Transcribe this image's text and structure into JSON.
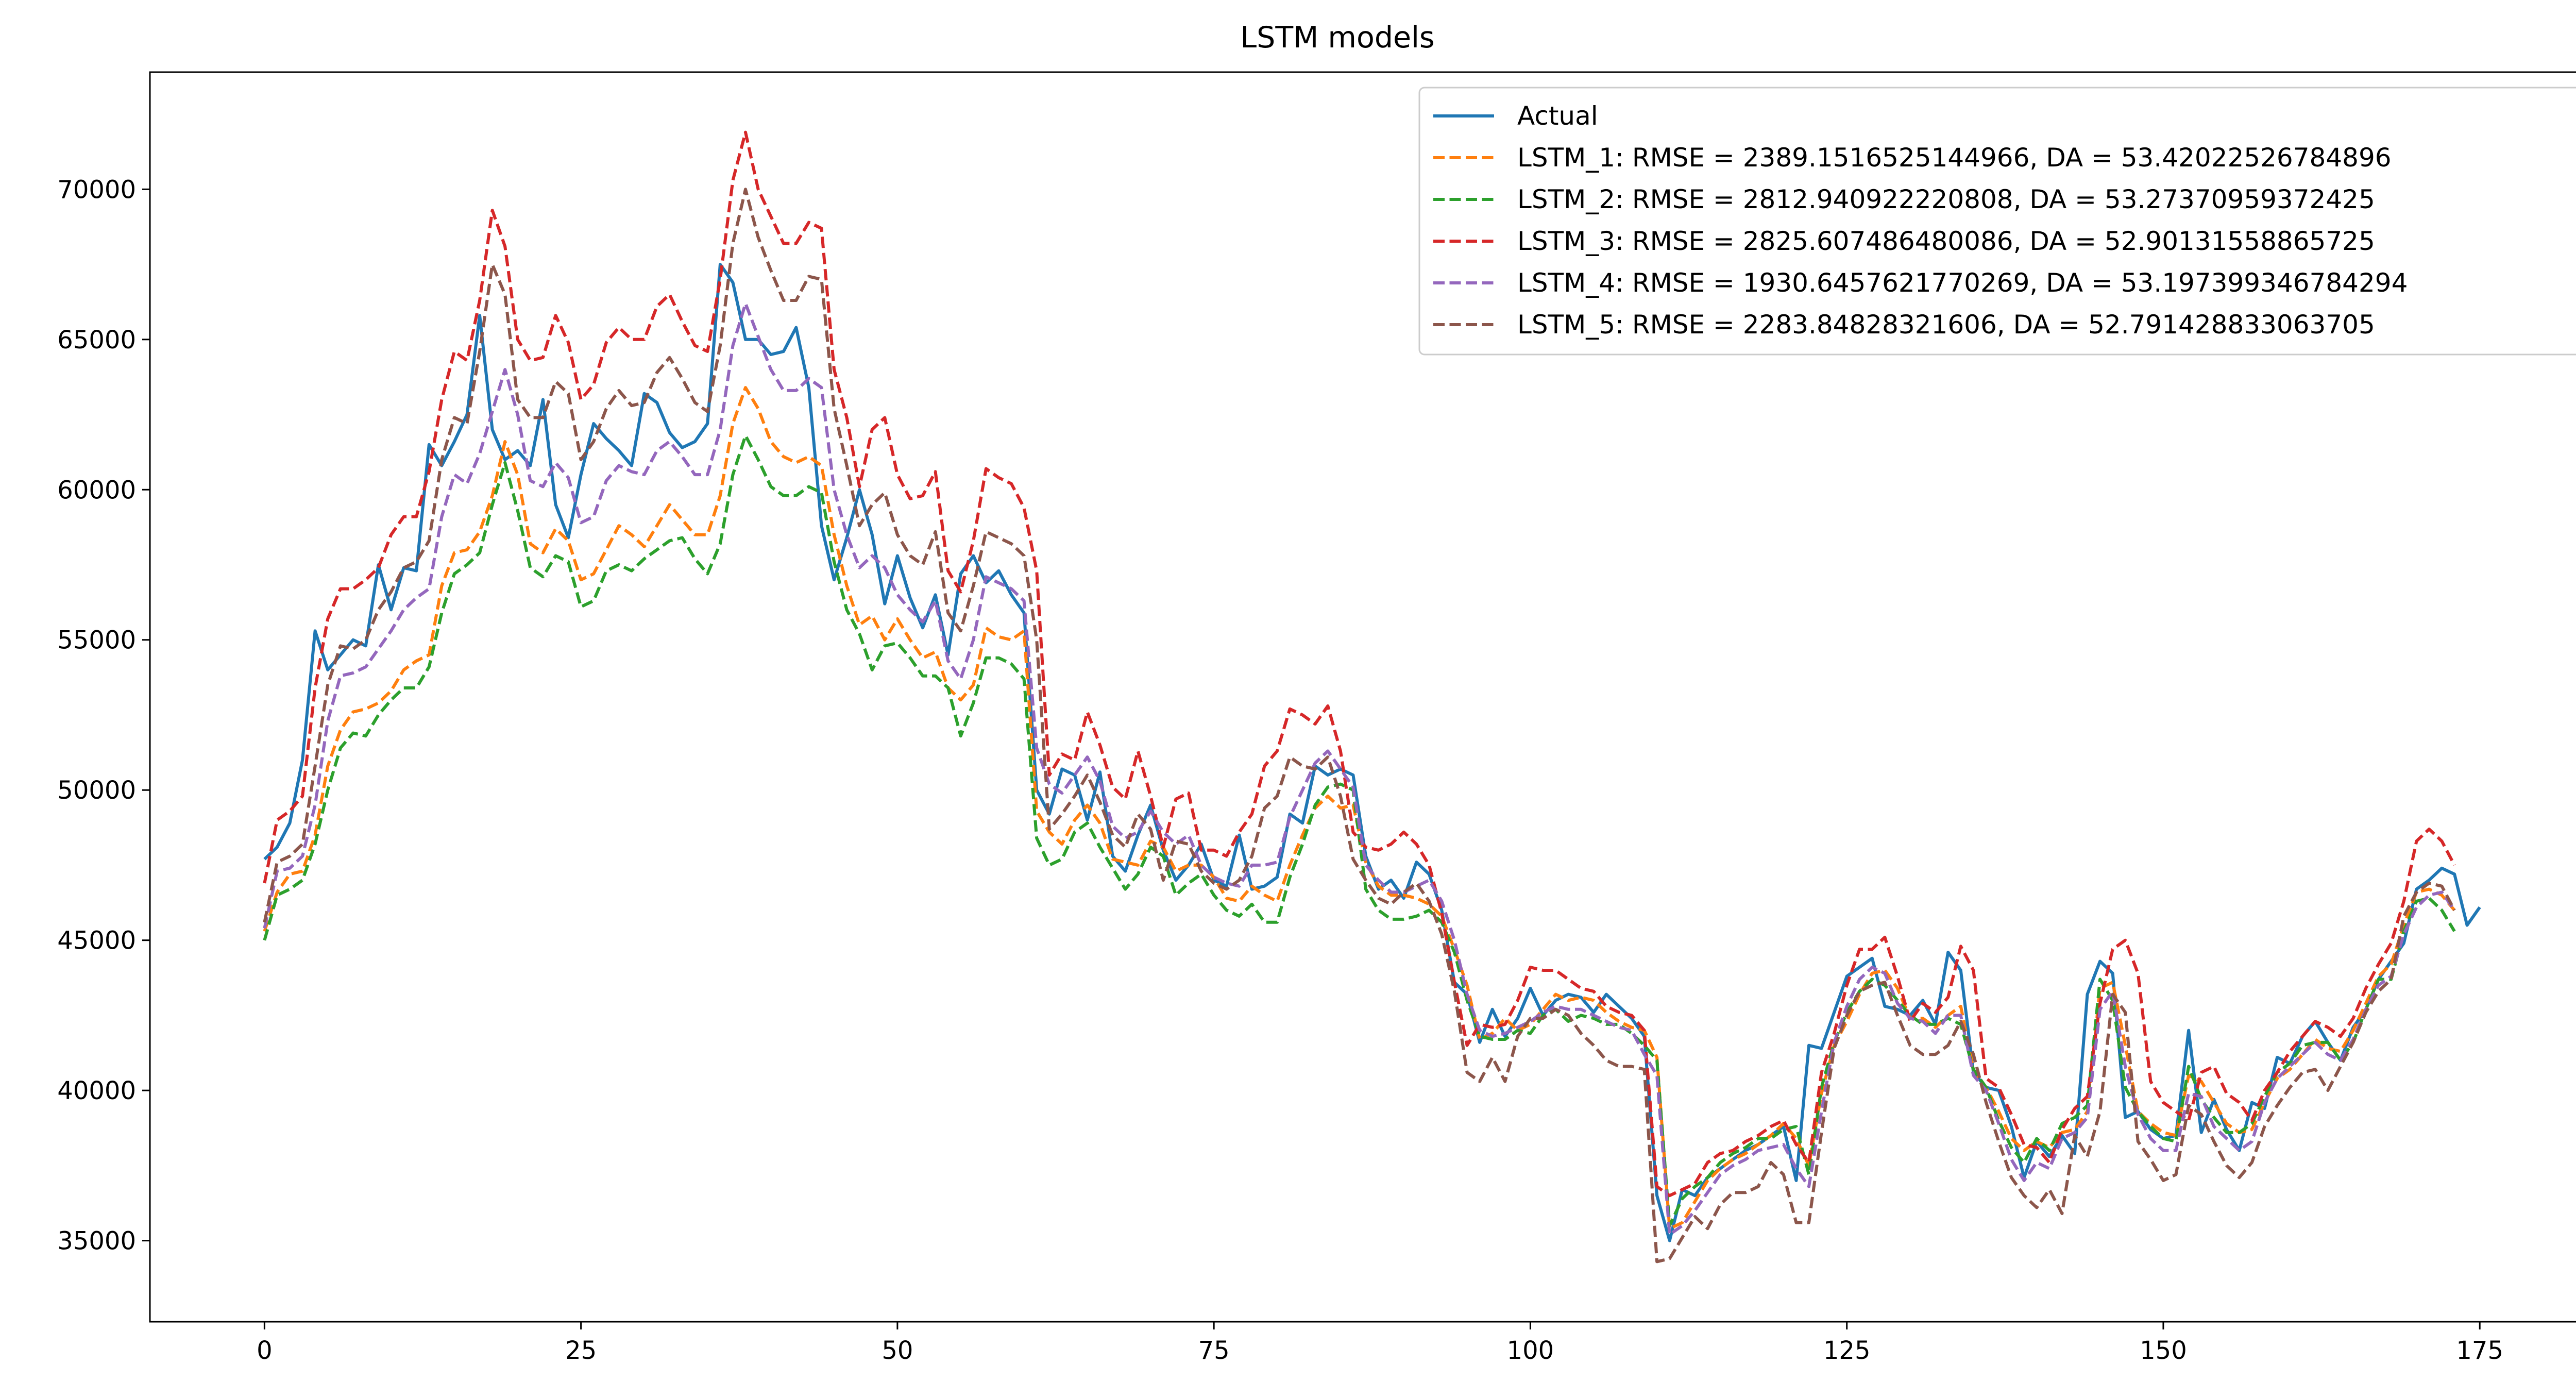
{
  "chart_data": {
    "type": "line",
    "title": "LSTM models",
    "xlabel": "",
    "ylabel": "",
    "xlim": [
      -9.05,
      190.05
    ],
    "ylim": [
      32300,
      73900
    ],
    "xticks": [
      0,
      25,
      50,
      75,
      100,
      125,
      150,
      175
    ],
    "xtick_labels": [
      "0",
      "25",
      "50",
      "75",
      "100",
      "125",
      "150",
      "175"
    ],
    "yticks": [
      35000,
      40000,
      45000,
      50000,
      55000,
      60000,
      65000,
      70000
    ],
    "ytick_labels": [
      "35000",
      "40000",
      "45000",
      "50000",
      "55000",
      "60000",
      "65000",
      "70000"
    ],
    "grid": false,
    "legend_position": "upper-right",
    "series": [
      {
        "name": "Actual",
        "color": "#1f77b4",
        "style": "solid",
        "values": [
          47700,
          48100,
          48900,
          51000,
          55300,
          54000,
          54500,
          55000,
          54800,
          57500,
          56000,
          57400,
          57300,
          61500,
          60800,
          61600,
          62500,
          65800,
          62000,
          61000,
          61300,
          60800,
          63000,
          59500,
          58400,
          60500,
          62200,
          61700,
          61300,
          60800,
          63200,
          62900,
          61900,
          61400,
          61600,
          62200,
          67500,
          66900,
          65000,
          65000,
          64500,
          64600,
          65400,
          63400,
          58800,
          57000,
          58400,
          60000,
          58500,
          56200,
          57800,
          56400,
          55400,
          56500,
          54500,
          57200,
          57800,
          56900,
          57300,
          56500,
          55900,
          50000,
          49200,
          50700,
          50500,
          49000,
          50600,
          47800,
          47300,
          48500,
          49500,
          48000,
          47000,
          47500,
          48200,
          47000,
          46800,
          48500,
          46700,
          46800,
          47100,
          49200,
          48900,
          50800,
          50500,
          50700,
          50500,
          47800,
          46700,
          47000,
          46400,
          47600,
          47200,
          46000,
          43600,
          43200,
          41600,
          42700,
          41800,
          42400,
          43400,
          42500,
          43000,
          43200,
          43100,
          42600,
          43200,
          42800,
          42400,
          41800,
          36500,
          35000,
          36700,
          36500,
          37100,
          37400,
          37700,
          38000,
          38200,
          38500,
          38800,
          37000,
          41500,
          41400,
          42600,
          43800,
          44100,
          44400,
          42800,
          42700,
          42500,
          43000,
          42200,
          44600,
          44000,
          40600,
          40100,
          40000,
          38800,
          37100,
          38300,
          37800,
          38500,
          37900,
          43200,
          44300,
          43900,
          39100,
          39300,
          38700,
          38400,
          38500,
          42000,
          38600,
          39700,
          38700,
          38000,
          39600,
          39400,
          41100,
          40900,
          41800,
          42300,
          41600,
          41000,
          42100,
          42700,
          43700,
          44300,
          44900,
          46700,
          47000,
          47400,
          47200,
          45500,
          46100
        ]
      },
      {
        "name": "LSTM_1: RMSE = 2389.1516525144966, DA = 53.42022526784896",
        "color": "#ff7f0e",
        "style": "dashed",
        "values": [
          45300,
          46600,
          47200,
          47300,
          48500,
          50800,
          52000,
          52600,
          52700,
          52900,
          53300,
          54000,
          54300,
          54500,
          56800,
          57900,
          58000,
          58600,
          59800,
          61600,
          60500,
          58200,
          57900,
          58700,
          58300,
          57000,
          57200,
          58000,
          58800,
          58500,
          58100,
          58800,
          59500,
          59000,
          58500,
          58500,
          59800,
          62200,
          63400,
          62700,
          61600,
          61100,
          60900,
          61100,
          60800,
          58500,
          56800,
          55500,
          55800,
          55000,
          55700,
          55000,
          54400,
          54600,
          53400,
          53000,
          53500,
          55400,
          55100,
          55000,
          55300,
          49300,
          48600,
          48200,
          49000,
          49500,
          48900,
          47700,
          47600,
          47500,
          48300,
          48100,
          47300,
          47500,
          47500,
          47100,
          46400,
          46300,
          46800,
          46500,
          46300,
          47500,
          48500,
          49400,
          49800,
          49400,
          49500,
          47600,
          46800,
          46500,
          46500,
          46400,
          46200,
          45800,
          44700,
          43500,
          41700,
          41900,
          42400,
          42000,
          42200,
          42700,
          43200,
          43000,
          43100,
          43000,
          42600,
          42300,
          42100,
          42000,
          41100,
          35400,
          35600,
          36300,
          37000,
          37400,
          37700,
          37900,
          38200,
          38500,
          38900,
          38400,
          37500,
          39900,
          41500,
          42300,
          43200,
          43900,
          44000,
          43400,
          42400,
          42400,
          42100,
          42500,
          42800,
          40700,
          40100,
          39300,
          38400,
          38000,
          38300,
          38100,
          38600,
          38700,
          39300,
          43400,
          43600,
          41500,
          39300,
          38900,
          38600,
          38500,
          40500,
          40300,
          39600,
          38900,
          38600,
          38700,
          39600,
          40400,
          40700,
          41200,
          41700,
          41400,
          41300,
          42000,
          42900,
          43800,
          44200,
          45500,
          46600,
          46700,
          46500,
          46000
        ]
      },
      {
        "name": "LSTM_2: RMSE = 2812.940922220808, DA = 53.27370959372425",
        "color": "#2ca02c",
        "style": "dashed",
        "values": [
          45000,
          46500,
          46700,
          47000,
          48200,
          50000,
          51400,
          51900,
          51800,
          52500,
          53000,
          53400,
          53400,
          54100,
          55900,
          57200,
          57500,
          57900,
          59500,
          60900,
          59300,
          57400,
          57100,
          57800,
          57600,
          56100,
          56300,
          57300,
          57500,
          57300,
          57700,
          58000,
          58300,
          58400,
          57700,
          57200,
          58200,
          60500,
          61800,
          61000,
          60100,
          59800,
          59800,
          60100,
          59900,
          57600,
          56000,
          55200,
          54000,
          54800,
          54900,
          54400,
          53800,
          53800,
          53400,
          51800,
          52900,
          54400,
          54400,
          54200,
          53700,
          48400,
          47500,
          47700,
          48600,
          48900,
          48100,
          47400,
          46700,
          47200,
          48100,
          47800,
          46500,
          46900,
          47200,
          46500,
          46000,
          45800,
          46200,
          45600,
          45600,
          47100,
          48200,
          49500,
          50100,
          50200,
          50000,
          46700,
          46000,
          45700,
          45700,
          45800,
          46000,
          45600,
          44600,
          43000,
          41800,
          41700,
          41700,
          42000,
          41900,
          42500,
          42700,
          42300,
          42500,
          42400,
          42200,
          42200,
          41900,
          41500,
          41000,
          35500,
          36400,
          36800,
          37100,
          37600,
          37900,
          38100,
          38400,
          38400,
          38700,
          38800,
          37200,
          40100,
          41600,
          42600,
          43300,
          43700,
          43500,
          43000,
          42500,
          42200,
          42200,
          42400,
          42200,
          40700,
          40100,
          39000,
          38100,
          37600,
          38400,
          38000,
          38900,
          39100,
          39500,
          43700,
          43000,
          40100,
          39300,
          38800,
          38400,
          38300,
          40800,
          39700,
          39100,
          38600,
          38600,
          38900,
          39800,
          40600,
          40900,
          41500,
          41600,
          41600,
          41000,
          41600,
          42700,
          43700,
          43700,
          45300,
          46300,
          46400,
          46000,
          45300
        ]
      },
      {
        "name": "LSTM_3: RMSE = 2825.607486480086, DA = 52.90131558865725",
        "color": "#d62728",
        "style": "dashed",
        "values": [
          46900,
          49000,
          49300,
          49800,
          53400,
          55700,
          56700,
          56700,
          57000,
          57400,
          58500,
          59100,
          59100,
          60600,
          63000,
          64600,
          64300,
          66300,
          69300,
          68100,
          65000,
          64300,
          64400,
          65800,
          64900,
          63000,
          63500,
          64900,
          65400,
          65000,
          65000,
          66100,
          66500,
          65600,
          64800,
          64600,
          67000,
          70300,
          71900,
          70000,
          69100,
          68200,
          68200,
          68900,
          68700,
          64000,
          62400,
          60100,
          62000,
          62400,
          60500,
          59700,
          59800,
          60600,
          57300,
          56600,
          58300,
          60700,
          60400,
          60200,
          59400,
          57300,
          50500,
          51200,
          51000,
          52600,
          51500,
          50100,
          49700,
          51300,
          49800,
          48100,
          49700,
          49900,
          48000,
          48000,
          47800,
          48600,
          49200,
          50800,
          51300,
          52700,
          52500,
          52200,
          52800,
          51300,
          48600,
          48100,
          48000,
          48200,
          48600,
          48200,
          47500,
          45900,
          43600,
          41500,
          42200,
          42100,
          42200,
          43000,
          44100,
          44000,
          44000,
          43700,
          43400,
          43300,
          42800,
          42600,
          42500,
          42000,
          36800,
          36500,
          36700,
          36900,
          37600,
          37900,
          38000,
          38300,
          38500,
          38800,
          39000,
          38200,
          37600,
          40600,
          41900,
          43500,
          44700,
          44700,
          45100,
          43800,
          42300,
          42900,
          42600,
          43100,
          44800,
          44000,
          40400,
          40100,
          39200,
          38200,
          38100,
          37600,
          38700,
          39400,
          39800,
          42900,
          44700,
          45000,
          43900,
          40300,
          39600,
          39300,
          39000,
          40600,
          40800,
          39900,
          39600,
          39000,
          40000,
          40600,
          41300,
          41800,
          42300,
          42100,
          41800,
          42400,
          43400,
          44200,
          44900,
          46300,
          48300,
          48700,
          48300,
          47500
        ]
      },
      {
        "name": "LSTM_4: RMSE = 1930.6457621770269, DA = 53.197399346784294",
        "color": "#9467bd",
        "style": "dashed",
        "values": [
          45400,
          47300,
          47400,
          47800,
          49500,
          52300,
          53800,
          53900,
          54100,
          54700,
          55300,
          56000,
          56400,
          56700,
          59100,
          60500,
          60200,
          61200,
          62600,
          64000,
          62500,
          60300,
          60100,
          60900,
          60400,
          58900,
          59100,
          60300,
          60800,
          60600,
          60500,
          61300,
          61600,
          61100,
          60500,
          60500,
          62000,
          64800,
          66200,
          65100,
          64000,
          63300,
          63300,
          63700,
          63400,
          60000,
          58500,
          57400,
          57800,
          57400,
          56500,
          56000,
          55600,
          56300,
          54300,
          53700,
          55000,
          57100,
          56900,
          56700,
          56300,
          51400,
          50200,
          49900,
          50500,
          51100,
          50300,
          48800,
          48400,
          48600,
          49300,
          48600,
          48200,
          48500,
          47500,
          47100,
          46900,
          46800,
          47500,
          47500,
          47600,
          49100,
          50000,
          50900,
          51300,
          50700,
          50100,
          47500,
          47000,
          46600,
          46600,
          46800,
          47000,
          46300,
          45000,
          43200,
          42000,
          41800,
          41900,
          42100,
          42300,
          42600,
          42800,
          42700,
          42700,
          42500,
          42300,
          42100,
          42000,
          41200,
          40500,
          35200,
          35500,
          36000,
          36600,
          37200,
          37500,
          37700,
          38000,
          38100,
          38200,
          37400,
          36800,
          39300,
          41600,
          42800,
          43700,
          44100,
          43900,
          42900,
          42400,
          42300,
          41900,
          42500,
          42500,
          40500,
          40000,
          38900,
          37700,
          37000,
          37600,
          37400,
          38400,
          38600,
          39100,
          42700,
          43300,
          40800,
          39200,
          38400,
          38000,
          38000,
          39900,
          39800,
          38800,
          38400,
          38000,
          38300,
          39600,
          40400,
          40800,
          41200,
          41600,
          41200,
          41000,
          41700,
          42700,
          43500,
          43800,
          45200,
          46100,
          46500,
          46600,
          46000
        ]
      },
      {
        "name": "LSTM_5: RMSE = 2283.84828321606, DA = 52.791428833063705",
        "color": "#8c564b",
        "style": "dashed",
        "values": [
          45600,
          47600,
          47800,
          48200,
          50800,
          53500,
          54800,
          54700,
          55000,
          56000,
          56600,
          57400,
          57600,
          58300,
          61000,
          62400,
          62200,
          64600,
          67500,
          66500,
          63000,
          62400,
          62400,
          63600,
          63200,
          61000,
          61600,
          62700,
          63300,
          62800,
          62900,
          63900,
          64400,
          63700,
          62900,
          62600,
          64800,
          68200,
          70000,
          68400,
          67300,
          66300,
          66300,
          67100,
          67000,
          62700,
          60800,
          58800,
          59500,
          59900,
          58500,
          57800,
          57500,
          58600,
          55900,
          55300,
          56800,
          58600,
          58400,
          58200,
          57800,
          55000,
          48700,
          49200,
          49800,
          50500,
          49600,
          48500,
          48100,
          49200,
          48700,
          47000,
          48300,
          48200,
          47300,
          46900,
          46700,
          47000,
          47800,
          49400,
          49800,
          51100,
          50800,
          50700,
          51100,
          49800,
          47700,
          47000,
          46400,
          46200,
          46600,
          46900,
          46300,
          45200,
          43300,
          40600,
          40300,
          41100,
          40300,
          41800,
          42400,
          42400,
          42700,
          42500,
          41900,
          41500,
          41000,
          40800,
          40800,
          40700,
          34300,
          34400,
          35100,
          35800,
          35400,
          36200,
          36600,
          36600,
          36800,
          37600,
          37200,
          35600,
          35600,
          38600,
          41400,
          42500,
          43300,
          43500,
          43600,
          42500,
          41500,
          41200,
          41200,
          41500,
          42300,
          41200,
          39600,
          38300,
          37100,
          36500,
          36100,
          36700,
          35900,
          38500,
          37800,
          39300,
          43200,
          42600,
          38300,
          37700,
          37000,
          37200,
          39500,
          39200,
          38300,
          37500,
          37100,
          37600,
          38800,
          39500,
          40100,
          40600,
          40700,
          40000,
          40800,
          41600,
          42600,
          43300,
          43700,
          45800,
          46600,
          46900,
          46800,
          46000
        ]
      }
    ]
  }
}
